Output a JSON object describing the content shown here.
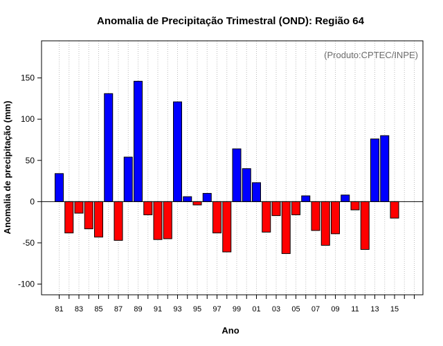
{
  "chart_data": {
    "type": "bar",
    "title": "Anomalia de Precipitação Trimestral (OND): Região 64",
    "xlabel": "Ano",
    "ylabel": "Anomalia de precipitação (mm)",
    "annotation": "(Produto:CPTEC/INPE)",
    "ylim": [
      -113,
      195
    ],
    "yticks": [
      -100,
      -50,
      0,
      50,
      100,
      150
    ],
    "ytick_labels": [
      "-100",
      "-50",
      "0",
      "50",
      "100",
      "150"
    ],
    "grid": "vertical dotted",
    "x": [
      1981,
      1982,
      1983,
      1984,
      1985,
      1986,
      1987,
      1988,
      1989,
      1990,
      1991,
      1992,
      1993,
      1994,
      1995,
      1996,
      1997,
      1998,
      1999,
      2000,
      2001,
      2002,
      2003,
      2004,
      2005,
      2006,
      2007,
      2008,
      2009,
      2010,
      2011,
      2012,
      2013,
      2014,
      2015
    ],
    "values": [
      34,
      -38,
      -14,
      -33,
      -43,
      131,
      -47,
      54,
      146,
      -16,
      -46,
      -45,
      121,
      6,
      -4,
      10,
      -38,
      -61,
      64,
      40,
      23,
      -37,
      -17,
      -63,
      -16,
      7,
      -35,
      -53,
      -39,
      8,
      -10,
      -58,
      76,
      80,
      -20
    ],
    "xtick_labels": [
      "81",
      "83",
      "85",
      "87",
      "89",
      "91",
      "93",
      "95",
      "97",
      "99",
      "01",
      "03",
      "05",
      "07",
      "09",
      "11",
      "13",
      "15"
    ],
    "colors": {
      "positive": "#0000ff",
      "negative": "#ff0000",
      "grid": "#bbbbbb"
    }
  }
}
